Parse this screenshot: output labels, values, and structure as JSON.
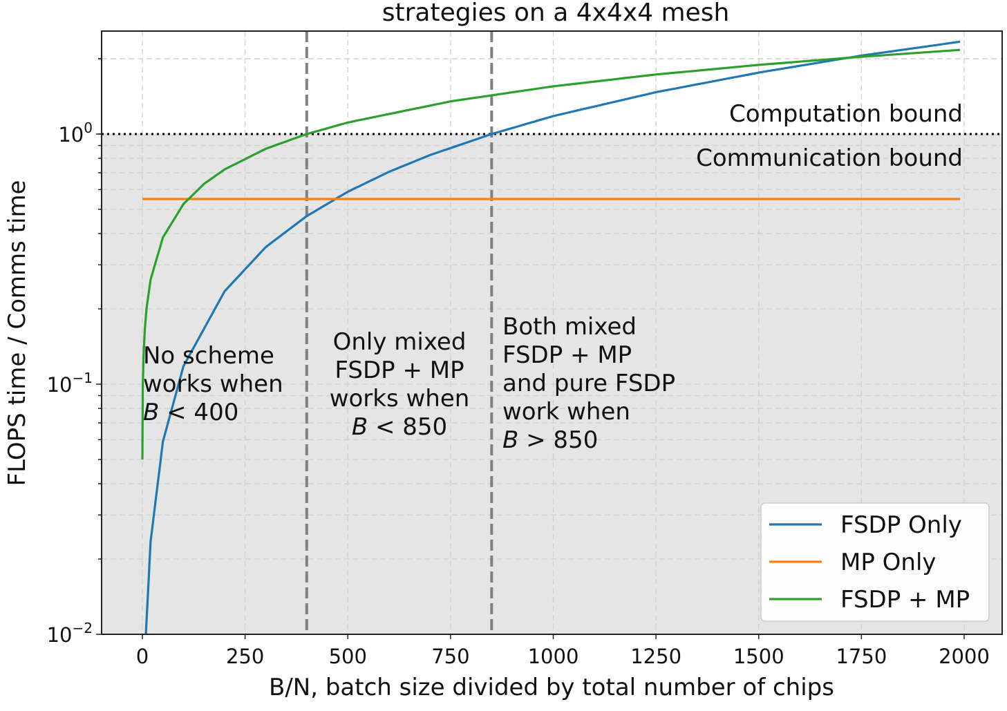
{
  "chart_data": {
    "type": "line",
    "title": "strategies on a 4x4x4 mesh",
    "xlabel": "B/N, batch size divided by total number of chips",
    "ylabel": "FLOPS time / Comms time",
    "xlim": [
      -100,
      2090
    ],
    "ylim": [
      0.01,
      2.58
    ],
    "yscale": "log",
    "grid": true,
    "x_ticks": [
      "0",
      "250",
      "500",
      "750",
      "1000",
      "1250",
      "1500",
      "1750",
      "2000"
    ],
    "y_ticks": [
      {
        "base": "10",
        "exp": "0"
      },
      {
        "base": "10",
        "exp": "−1"
      },
      {
        "base": "10",
        "exp": "−2"
      }
    ],
    "legend_position": "lower-right",
    "series": [
      {
        "name": "FSDP Only",
        "color": "#1f77b4",
        "x": [
          8.5,
          20,
          50,
          100,
          200,
          300,
          400,
          500,
          600,
          700,
          850,
          1000,
          1250,
          1500,
          1750,
          1990
        ],
        "y": [
          0.01,
          0.0235,
          0.059,
          0.118,
          0.235,
          0.353,
          0.47,
          0.588,
          0.706,
          0.824,
          1.0,
          1.18,
          1.47,
          1.76,
          2.06,
          2.34
        ]
      },
      {
        "name": "MP Only",
        "color": "#ff7f0e",
        "x": [
          0,
          1990
        ],
        "y": [
          0.55,
          0.55
        ]
      },
      {
        "name": "FSDP + MP",
        "color": "#2ca02c",
        "x": [
          0,
          1,
          3,
          6,
          10,
          20,
          50,
          100,
          150,
          200,
          300,
          400,
          500,
          750,
          1000,
          1250,
          1500,
          1750,
          1990
        ],
        "y": [
          0.05,
          0.098,
          0.132,
          0.166,
          0.2,
          0.262,
          0.386,
          0.525,
          0.632,
          0.722,
          0.873,
          1.0,
          1.112,
          1.351,
          1.552,
          1.73,
          1.89,
          2.037,
          2.17
        ]
      }
    ],
    "reference_lines": [
      {
        "type": "horizontal",
        "y": 1,
        "style": "dotted",
        "color": "#000000"
      },
      {
        "type": "vertical",
        "x": 400,
        "style": "dashed",
        "color": "#808080"
      },
      {
        "type": "vertical",
        "x": 850,
        "style": "dashed",
        "color": "#808080"
      }
    ],
    "shaded_region": {
      "below_y": 1,
      "color": "#e5e5e5"
    },
    "annotations": {
      "computation_bound": "Computation bound",
      "communication_bound": "Communication bound",
      "region1": [
        "No scheme",
        "works when",
        "B < 400"
      ],
      "region2": [
        "Only mixed",
        "FSDP + MP",
        "works when",
        "B < 850"
      ],
      "region3": [
        "Both mixed",
        "FSDP + MP",
        "and pure FSDP",
        "work when",
        "B > 850"
      ]
    }
  }
}
